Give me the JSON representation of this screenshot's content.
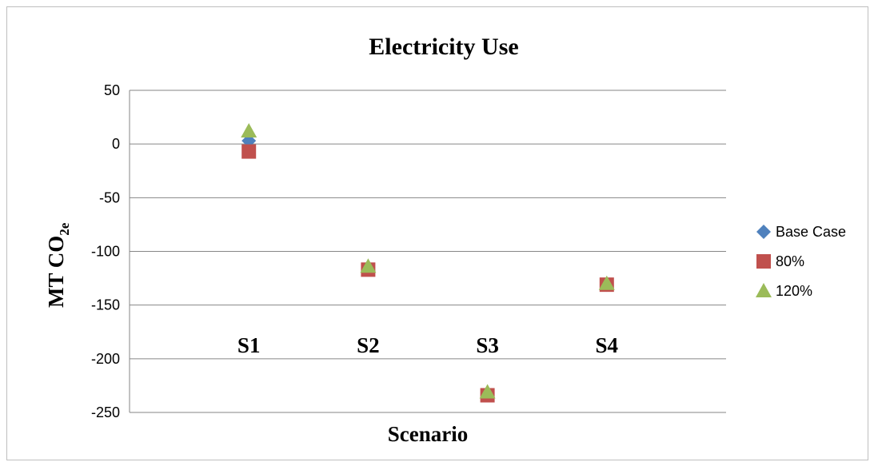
{
  "chart_data": {
    "type": "scatter",
    "title": "Electricity Use",
    "ylabel_main": "MT CO",
    "ylabel_sub": "2e",
    "xlabel": "Scenario",
    "categories": [
      "S1",
      "S2",
      "S3",
      "S4"
    ],
    "ylim": [
      -250,
      50
    ],
    "yticks": [
      50,
      0,
      -50,
      -100,
      -150,
      -200,
      -250
    ],
    "grid": true,
    "legend_position": "right",
    "series": [
      {
        "name": "Base Case",
        "marker": "diamond",
        "color": "#4f81bd",
        "values": [
          3,
          -115,
          -232,
          -131
        ]
      },
      {
        "name": "80%",
        "marker": "square",
        "color": "#c0504d",
        "values": [
          -7,
          -117,
          -234,
          -131
        ]
      },
      {
        "name": "120%",
        "marker": "triangle",
        "color": "#9bbb59",
        "values": [
          12,
          -114,
          -231,
          -130
        ]
      }
    ]
  }
}
